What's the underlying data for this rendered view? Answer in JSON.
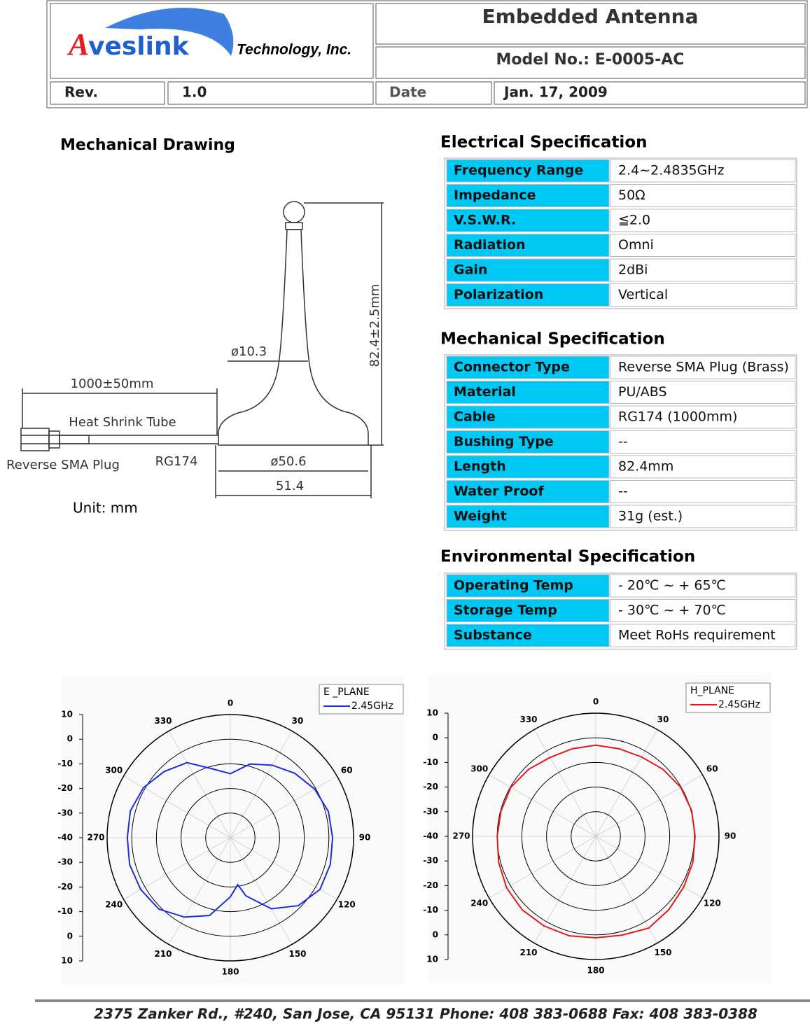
{
  "header": {
    "logo": {
      "initial": "A",
      "name": "veslink",
      "tagline": "Technology, Inc."
    },
    "title": "Embedded Antenna",
    "model": "Model No.:  E-0005-AC",
    "rev_label": "Rev.",
    "rev": "1.0",
    "date_label": "Date",
    "date": "Jan. 17, 2009"
  },
  "drawing": {
    "title": "Mechanical Drawing",
    "diameter_top": "ø10.3",
    "height": "82.4±2.5mm",
    "cable_length": "1000±50mm",
    "heat_shrink": "Heat  Shrink  Tube",
    "connector": "Reverse  SMA  Plug",
    "cable": "RG174",
    "diameter_base": "ø50.6",
    "width": "51.4",
    "unit": "Unit: mm"
  },
  "electrical": {
    "title": "Electrical Specification",
    "rows": [
      [
        "Frequency Range",
        "2.4~2.4835GHz"
      ],
      [
        "Impedance",
        "50Ω"
      ],
      [
        "V.S.W.R.",
        "≦2.0"
      ],
      [
        "Radiation",
        "Omni"
      ],
      [
        "Gain",
        "2dBi"
      ],
      [
        "Polarization",
        "Vertical"
      ]
    ]
  },
  "mechanical": {
    "title": "Mechanical Specification",
    "rows": [
      [
        "Connector Type",
        "Reverse SMA Plug (Brass)"
      ],
      [
        "Material",
        "PU/ABS"
      ],
      [
        "Cable",
        "RG174 (1000mm)"
      ],
      [
        "Bushing Type",
        "--"
      ],
      [
        "Length",
        "82.4mm"
      ],
      [
        "Water Proof",
        "--"
      ],
      [
        "Weight",
        "31g (est.)"
      ]
    ]
  },
  "environmental": {
    "title": "Environmental Specification",
    "rows": [
      [
        "Operating Temp",
        "- 20℃ ~ + 65℃"
      ],
      [
        "Storage Temp",
        "- 30℃ ~ + 70℃"
      ],
      [
        "Substance",
        "Meet RoHs requirement"
      ]
    ]
  },
  "chart_data": [
    {
      "type": "polar",
      "legend_title": "E _PLANE",
      "rlim": [
        -40,
        10
      ],
      "rticks": [
        10,
        0,
        -10,
        -20,
        -30,
        -40
      ],
      "thetaticks": [
        0,
        30,
        60,
        90,
        120,
        150,
        180,
        210,
        240,
        270,
        300,
        330
      ],
      "series": [
        {
          "name": "2.45GHz",
          "color": "#1a2ee0",
          "angles": [
            0,
            15,
            30,
            45,
            60,
            75,
            90,
            105,
            120,
            135,
            150,
            165,
            171,
            180,
            195,
            210,
            225,
            240,
            255,
            270,
            285,
            300,
            315,
            330,
            345
          ],
          "values": [
            -14,
            -9,
            -6,
            -3,
            -0.5,
            1.2,
            1.5,
            2,
            2,
            -1,
            -6.7,
            -15.6,
            -20.7,
            -16,
            -7.3,
            -2.8,
            1,
            2,
            2.3,
            1.8,
            2,
            0.7,
            -2,
            -4.8,
            -11
          ]
        }
      ]
    },
    {
      "type": "polar",
      "legend_title": "H_PLANE",
      "rlim": [
        -40,
        10
      ],
      "rticks": [
        10,
        0,
        -10,
        -20,
        -30,
        -40
      ],
      "thetaticks": [
        0,
        30,
        60,
        90,
        120,
        150,
        180,
        210,
        240,
        270,
        300,
        330
      ],
      "series": [
        {
          "name": "2.45GHz",
          "color": "#e41a1a",
          "angles": [
            0,
            15,
            30,
            45,
            60,
            75,
            90,
            105,
            120,
            135,
            150,
            165,
            180,
            195,
            210,
            225,
            240,
            255,
            270,
            285,
            300,
            315,
            330,
            345
          ],
          "values": [
            -3,
            -3.2,
            -2.8,
            -1.5,
            -0.2,
            0.3,
            0.3,
            0.8,
            1.2,
            2,
            3,
            1.5,
            1.2,
            1.8,
            2,
            2.2,
            1.8,
            0.8,
            0,
            -0.2,
            -0.2,
            -1.5,
            -3,
            -3.2
          ]
        }
      ]
    }
  ],
  "footer": "2375 Zanker Rd., #240, San Jose, CA 95131  Phone: 408 383-0688 Fax: 408 383-0388"
}
